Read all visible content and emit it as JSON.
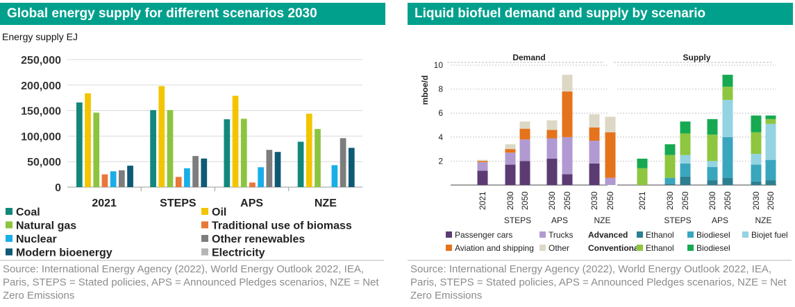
{
  "left": {
    "title": "Global energy supply for different scenarios 2030",
    "source": "Source: International Energy Agency (2022), World Energy Outlook 2022, IEA, Paris, STEPS = Stated policies, APS = Announced Pledges scenarios, NZE = Net Zero Emissions"
  },
  "right": {
    "title": "Liquid biofuel demand and supply by scenario",
    "source": "Source: International Energy Agency (2022), World Energy Outlook 2022, IEA, Paris, STEPS = Stated policies, APS = Announced Pledges scenarios, NZE = Net Zero Emissions"
  },
  "colors": {
    "banner": "#00a08c",
    "coal": "#12877b",
    "oil": "#f2c500",
    "natural_gas": "#8cc43f",
    "traditional_biomass": "#e8773a",
    "nuclear": "#1aaee8",
    "other_renewables": "#7d7d7d",
    "modern_bioenergy": "#0e5a74",
    "electricity": "#b5b5b5",
    "passenger_cars": "#5c3b73",
    "trucks": "#b19ad1",
    "aviation_shipping": "#e5731b",
    "other": "#ddd8c6",
    "adv_ethanol": "#2c7f91",
    "adv_biodiesel": "#3aa6be",
    "biojet": "#93d3e2",
    "conv_ethanol": "#8ec63f",
    "conv_biodiesel": "#17a952"
  },
  "chart_data": [
    {
      "type": "bar",
      "ylabel": "Energy supply EJ",
      "ylim": [
        0,
        250000
      ],
      "yticks": [
        "0",
        "50,000",
        "100,000",
        "150,000",
        "200,000",
        "250,000"
      ],
      "grid": true,
      "legend_position": "bottom",
      "categories": [
        "2021",
        "STEPS",
        "APS",
        "NZE"
      ],
      "series": [
        {
          "name": "Coal",
          "color_key": "coal",
          "values": [
            166000,
            151000,
            133000,
            89000
          ]
        },
        {
          "name": "Oil",
          "color_key": "oil",
          "values": [
            184000,
            198000,
            179000,
            144000
          ]
        },
        {
          "name": "Natural gas",
          "color_key": "natural_gas",
          "values": [
            146000,
            151000,
            134000,
            114000
          ]
        },
        {
          "name": "Traditional use of biomass",
          "color_key": "traditional_biomass",
          "values": [
            25000,
            20000,
            9000,
            0
          ]
        },
        {
          "name": "Nuclear",
          "color_key": "nuclear",
          "values": [
            31000,
            37000,
            39000,
            43000
          ]
        },
        {
          "name": "Other renewables",
          "color_key": "other_renewables",
          "values": [
            33000,
            61000,
            73000,
            96000
          ]
        },
        {
          "name": "Modern bioenergy",
          "color_key": "modern_bioenergy",
          "values": [
            42000,
            56000,
            69000,
            77000
          ]
        },
        {
          "name": "Electricity",
          "color_key": "electricity",
          "values": [
            0,
            0,
            0,
            0
          ]
        }
      ]
    },
    {
      "type": "bar",
      "stacked": true,
      "ylabel": "mboe/d",
      "ylim": [
        0,
        10
      ],
      "yticks": [
        "2",
        "4",
        "6",
        "8",
        "10"
      ],
      "legend_position": "bottom",
      "panels": [
        {
          "title": "Demand",
          "bars": [
            "2021",
            "2030",
            "2050",
            "2030",
            "2050",
            "2030",
            "2050"
          ],
          "groups": [
            {
              "label": "STEPS",
              "bars": [
                1,
                2
              ]
            },
            {
              "label": "APS",
              "bars": [
                3,
                4
              ]
            },
            {
              "label": "NZE",
              "bars": [
                5,
                6
              ]
            }
          ],
          "series": [
            {
              "name": "Passenger cars",
              "color_key": "passenger_cars",
              "values": [
                1.2,
                1.7,
                2.0,
                2.2,
                0.9,
                1.8,
                0.0
              ]
            },
            {
              "name": "Trucks",
              "color_key": "trucks",
              "values": [
                0.7,
                1.0,
                1.8,
                1.7,
                3.1,
                1.9,
                0.6
              ]
            },
            {
              "name": "Aviation and shipping",
              "color_key": "aviation_shipping",
              "values": [
                0.1,
                0.3,
                0.9,
                0.7,
                3.8,
                1.1,
                3.8
              ]
            },
            {
              "name": "Other",
              "color_key": "other",
              "values": [
                0.1,
                0.4,
                0.6,
                0.8,
                1.4,
                1.1,
                1.3
              ]
            }
          ]
        },
        {
          "title": "Supply",
          "bars": [
            "2021",
            "2030",
            "2050",
            "2030",
            "2050",
            "2030",
            "2050"
          ],
          "groups": [
            {
              "label": "STEPS",
              "bars": [
                1,
                2
              ]
            },
            {
              "label": "APS",
              "bars": [
                3,
                4
              ]
            },
            {
              "label": "NZE",
              "bars": [
                5,
                6
              ]
            }
          ],
          "series": [
            {
              "name": "Advanced Ethanol",
              "color_key": "adv_ethanol",
              "values": [
                0.0,
                0.1,
                0.7,
                0.4,
                0.6,
                0.3,
                0.4
              ]
            },
            {
              "name": "Advanced Biodiesel",
              "color_key": "adv_biodiesel",
              "values": [
                0.0,
                0.5,
                1.1,
                1.1,
                3.4,
                1.4,
                1.7
              ]
            },
            {
              "name": "Biojet fuel",
              "color_key": "biojet",
              "values": [
                0.0,
                0.0,
                0.7,
                0.5,
                3.1,
                0.9,
                3.0
              ]
            },
            {
              "name": "Conventional Ethanol",
              "color_key": "conv_ethanol",
              "values": [
                1.4,
                1.9,
                1.8,
                2.2,
                1.1,
                1.8,
                0.4
              ]
            },
            {
              "name": "Conventional Biodiesel",
              "color_key": "conv_biodiesel",
              "values": [
                0.8,
                0.9,
                1.0,
                1.3,
                1.0,
                1.4,
                0.3
              ]
            }
          ]
        }
      ],
      "legend": {
        "row1": [
          {
            "label": "Passenger cars",
            "color_key": "passenger_cars"
          },
          {
            "label": "Trucks",
            "color_key": "trucks"
          },
          {
            "label": "Advanced",
            "header": true
          },
          {
            "label": "Ethanol",
            "color_key": "adv_ethanol"
          },
          {
            "label": "Biodiesel",
            "color_key": "adv_biodiesel"
          },
          {
            "label": "Biojet fuel",
            "color_key": "biojet"
          }
        ],
        "row2": [
          {
            "label": "Aviation and shipping",
            "color_key": "aviation_shipping"
          },
          {
            "label": "Other",
            "color_key": "other"
          },
          {
            "label": "Conventional",
            "header": true
          },
          {
            "label": "Ethanol",
            "color_key": "conv_ethanol"
          },
          {
            "label": "Biodiesel",
            "color_key": "conv_biodiesel"
          }
        ]
      }
    }
  ]
}
